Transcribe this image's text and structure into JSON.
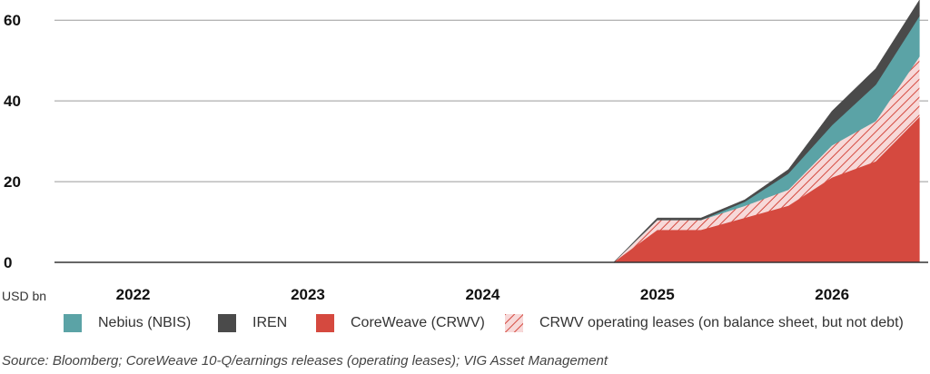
{
  "chart_data": {
    "type": "area",
    "stacked": true,
    "ylabel": "USD bn",
    "ylim": [
      0,
      65
    ],
    "yticks": [
      0,
      20,
      40,
      60
    ],
    "xlim": [
      2021.55,
      2026.55
    ],
    "xtick_labels": [
      "2022",
      "2023",
      "2024",
      "2025",
      "2026"
    ],
    "xtick_values": [
      2022,
      2023,
      2024,
      2025,
      2026
    ],
    "grid": "horizontal",
    "legend_position": "bottom",
    "x": [
      2024.75,
      2025.0,
      2025.25,
      2025.5,
      2025.75,
      2026.0,
      2026.25,
      2026.5
    ],
    "series": [
      {
        "name": "CoreWeave (CRWV)",
        "color": "#d5493f",
        "values": [
          0,
          8,
          8,
          11,
          14,
          21,
          25,
          36
        ]
      },
      {
        "name": "CRWV operating leases (on balance sheet, but not debt)",
        "color": "#f7d9d9",
        "hatch_color": "#d5493f",
        "values": [
          0,
          2.5,
          2.5,
          3,
          4,
          8,
          10,
          15
        ]
      },
      {
        "name": "Nebius (NBIS)",
        "color": "#5ba3a6",
        "values": [
          0,
          0,
          0,
          1,
          4,
          5,
          9,
          10
        ]
      },
      {
        "name": "IREN",
        "color": "#4a4a4a",
        "values": [
          0,
          0.5,
          0.5,
          0.5,
          1,
          3.5,
          4,
          4
        ]
      }
    ]
  },
  "legend": [
    {
      "label": "Nebius (NBIS)",
      "color": "#5ba3a6"
    },
    {
      "label": "IREN",
      "color": "#4a4a4a"
    },
    {
      "label": "CoreWeave (CRWV)",
      "color": "#d5493f"
    },
    {
      "label": "CRWV operating leases (on balance sheet, but not debt)",
      "color": "#f7d9d9",
      "hatch": true
    }
  ],
  "source": "Source: Bloomberg; CoreWeave 10-Q/earnings releases (operating leases); VIG Asset Management"
}
